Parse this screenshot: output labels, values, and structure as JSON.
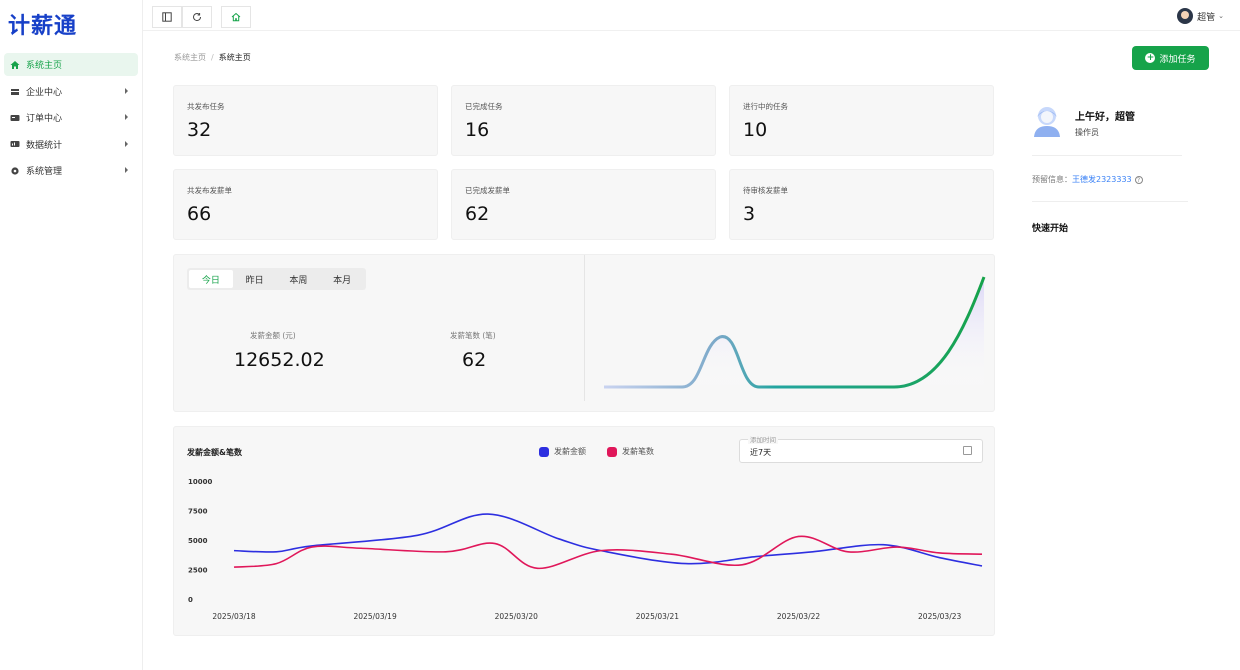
{
  "app": {
    "logo_text": "计薪通"
  },
  "sidebar": {
    "items": [
      {
        "label": "系统主页",
        "icon": "home-icon",
        "active": true
      },
      {
        "label": "企业中心",
        "icon": "building-icon"
      },
      {
        "label": "订单中心",
        "icon": "order-icon"
      },
      {
        "label": "数据统计",
        "icon": "chart-icon"
      },
      {
        "label": "系统管理",
        "icon": "gear-icon"
      }
    ]
  },
  "topbar": {
    "user_name": "超管"
  },
  "breadcrumb": {
    "parent": "系统主页",
    "separator": "/",
    "current": "系统主页"
  },
  "actions": {
    "add_task": "添加任务"
  },
  "stats": [
    {
      "label": "共发布任务",
      "value": "32"
    },
    {
      "label": "已完成任务",
      "value": "16"
    },
    {
      "label": "进行中的任务",
      "value": "10"
    },
    {
      "label": "共发布发薪单",
      "value": "66"
    },
    {
      "label": "已完成发薪单",
      "value": "62"
    },
    {
      "label": "待审核发薪单",
      "value": "3"
    }
  ],
  "period_panel": {
    "tabs": [
      "今日",
      "昨日",
      "本周",
      "本月"
    ],
    "active_tab": "今日",
    "amount_label": "发薪金额 (元)",
    "amount_value": "12652.02",
    "count_label": "发薪笔数 (笔)",
    "count_value": "62"
  },
  "chart_panel": {
    "title": "发薪金额&笔数",
    "date_field_label": "添加时间",
    "date_field_value": "近7天"
  },
  "chart_data": {
    "type": "line",
    "x": [
      "2025/03/18",
      "2025/03/19",
      "2025/03/20",
      "2025/03/21",
      "2025/03/22",
      "2025/03/23"
    ],
    "ylim": [
      0,
      10000
    ],
    "yticks": [
      "10000",
      "7500",
      "5000",
      "2500",
      "0"
    ],
    "series": [
      {
        "name": "发薪金额",
        "color": "#2d2fe0",
        "points": [
          [
            0,
            4100
          ],
          [
            0.3,
            4000
          ],
          [
            0.55,
            4500
          ],
          [
            1.3,
            5400
          ],
          [
            1.8,
            7200
          ],
          [
            2.3,
            5100
          ],
          [
            2.6,
            4100
          ],
          [
            3.2,
            3000
          ],
          [
            3.7,
            3600
          ],
          [
            4.1,
            4000
          ],
          [
            4.6,
            4600
          ],
          [
            5.0,
            3500
          ],
          [
            5.3,
            2800
          ]
        ]
      },
      {
        "name": "发薪笔数",
        "color": "#e0175a",
        "points": [
          [
            0,
            2700
          ],
          [
            0.3,
            3000
          ],
          [
            0.55,
            4400
          ],
          [
            0.9,
            4300
          ],
          [
            1.5,
            4000
          ],
          [
            1.85,
            4700
          ],
          [
            2.15,
            2600
          ],
          [
            2.6,
            4100
          ],
          [
            3.1,
            3800
          ],
          [
            3.6,
            2900
          ],
          [
            4.0,
            5300
          ],
          [
            4.35,
            4000
          ],
          [
            4.7,
            4400
          ],
          [
            5.0,
            3900
          ],
          [
            5.3,
            3800
          ]
        ]
      }
    ]
  },
  "sparkline": {
    "colors": [
      "#b9c6ea",
      "#23a5a0",
      "#16a34a"
    ]
  },
  "profile": {
    "greeting": "上午好，超管",
    "role": "操作员",
    "reserve_label": "预留信息：",
    "reserve_value": "王德发2323333",
    "quick_start": "快速开始"
  }
}
